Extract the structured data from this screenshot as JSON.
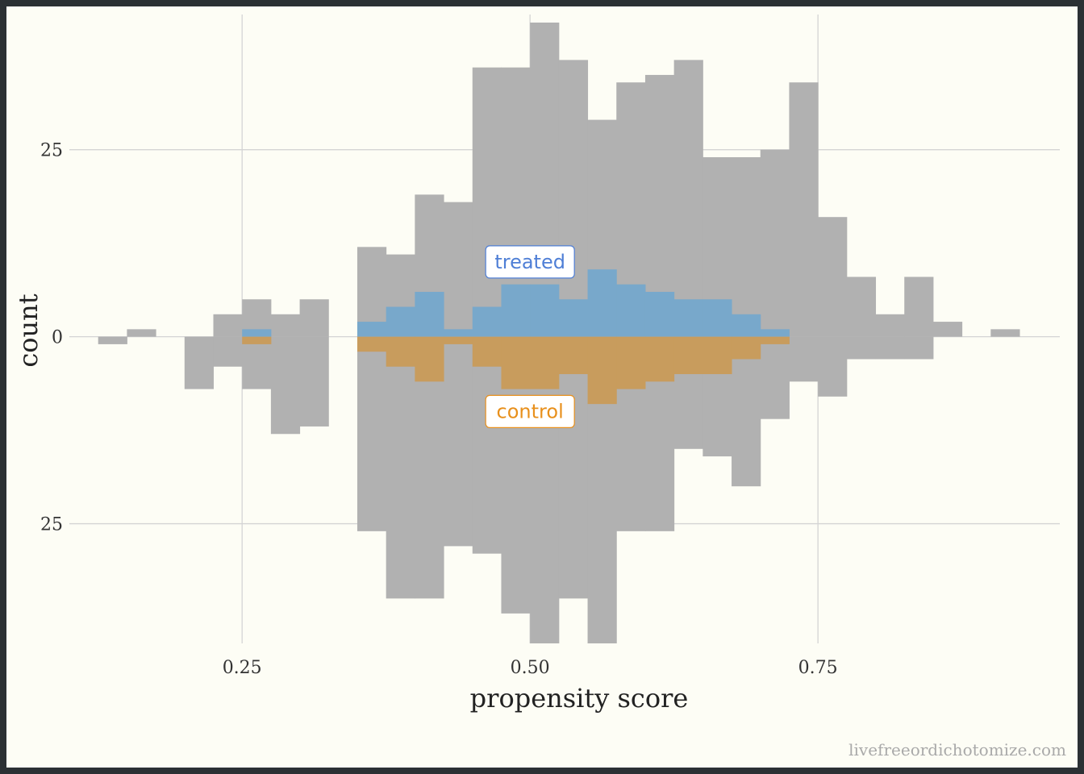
{
  "chart_data": {
    "type": "bar",
    "title": "",
    "xlabel": "propensity score",
    "ylabel": "count",
    "x_ticks": [
      "0.25",
      "0.50",
      "0.75"
    ],
    "x_tick_values": [
      0.25,
      0.5,
      0.75
    ],
    "y_ticks": [
      "25",
      "0",
      "25"
    ],
    "y_tick_values": [
      25,
      0,
      -25
    ],
    "xlim": [
      0.1,
      0.96
    ],
    "ylim": [
      -41,
      42
    ],
    "grid": true,
    "bin_width": 0.025,
    "bin_start": 0.125,
    "series": [
      {
        "name": "treated",
        "direction": "up",
        "all_values": [
          0,
          1,
          0,
          0,
          3,
          5,
          3,
          5,
          0,
          12,
          11,
          19,
          18,
          36,
          36,
          42,
          37,
          29,
          34,
          35,
          37,
          24,
          24,
          25,
          34,
          16,
          8,
          3,
          8,
          2,
          0,
          1
        ],
        "matched_values": [
          0,
          0,
          0,
          0,
          0,
          1,
          0,
          0,
          0,
          2,
          4,
          6,
          1,
          4,
          7,
          7,
          5,
          9,
          7,
          6,
          5,
          5,
          3,
          1,
          0,
          0,
          0,
          0,
          0,
          0,
          0,
          0
        ]
      },
      {
        "name": "control",
        "direction": "down",
        "all_values": [
          1,
          0,
          0,
          7,
          4,
          7,
          13,
          12,
          0,
          26,
          35,
          35,
          28,
          29,
          37,
          41,
          35,
          41,
          26,
          26,
          15,
          16,
          20,
          11,
          6,
          8,
          3,
          3,
          3,
          0,
          0,
          0
        ],
        "matched_values": [
          0,
          0,
          0,
          0,
          0,
          1,
          0,
          0,
          0,
          2,
          4,
          6,
          1,
          4,
          7,
          7,
          5,
          9,
          7,
          6,
          5,
          5,
          3,
          1,
          0,
          0,
          0,
          0,
          0,
          0,
          0,
          0
        ]
      }
    ],
    "annotations": [
      {
        "text": "treated",
        "x": 0.5,
        "y": 10,
        "color": "#4f7fd6"
      },
      {
        "text": "control",
        "x": 0.5,
        "y": -10,
        "color": "#e8901c"
      }
    ],
    "colors": {
      "all": "#b1b1b1",
      "treated_matched": "#78a8cb",
      "control_matched": "#c89c5d",
      "grid": "#d4d4d4"
    }
  },
  "watermark": "livefreeordichotomize.com"
}
